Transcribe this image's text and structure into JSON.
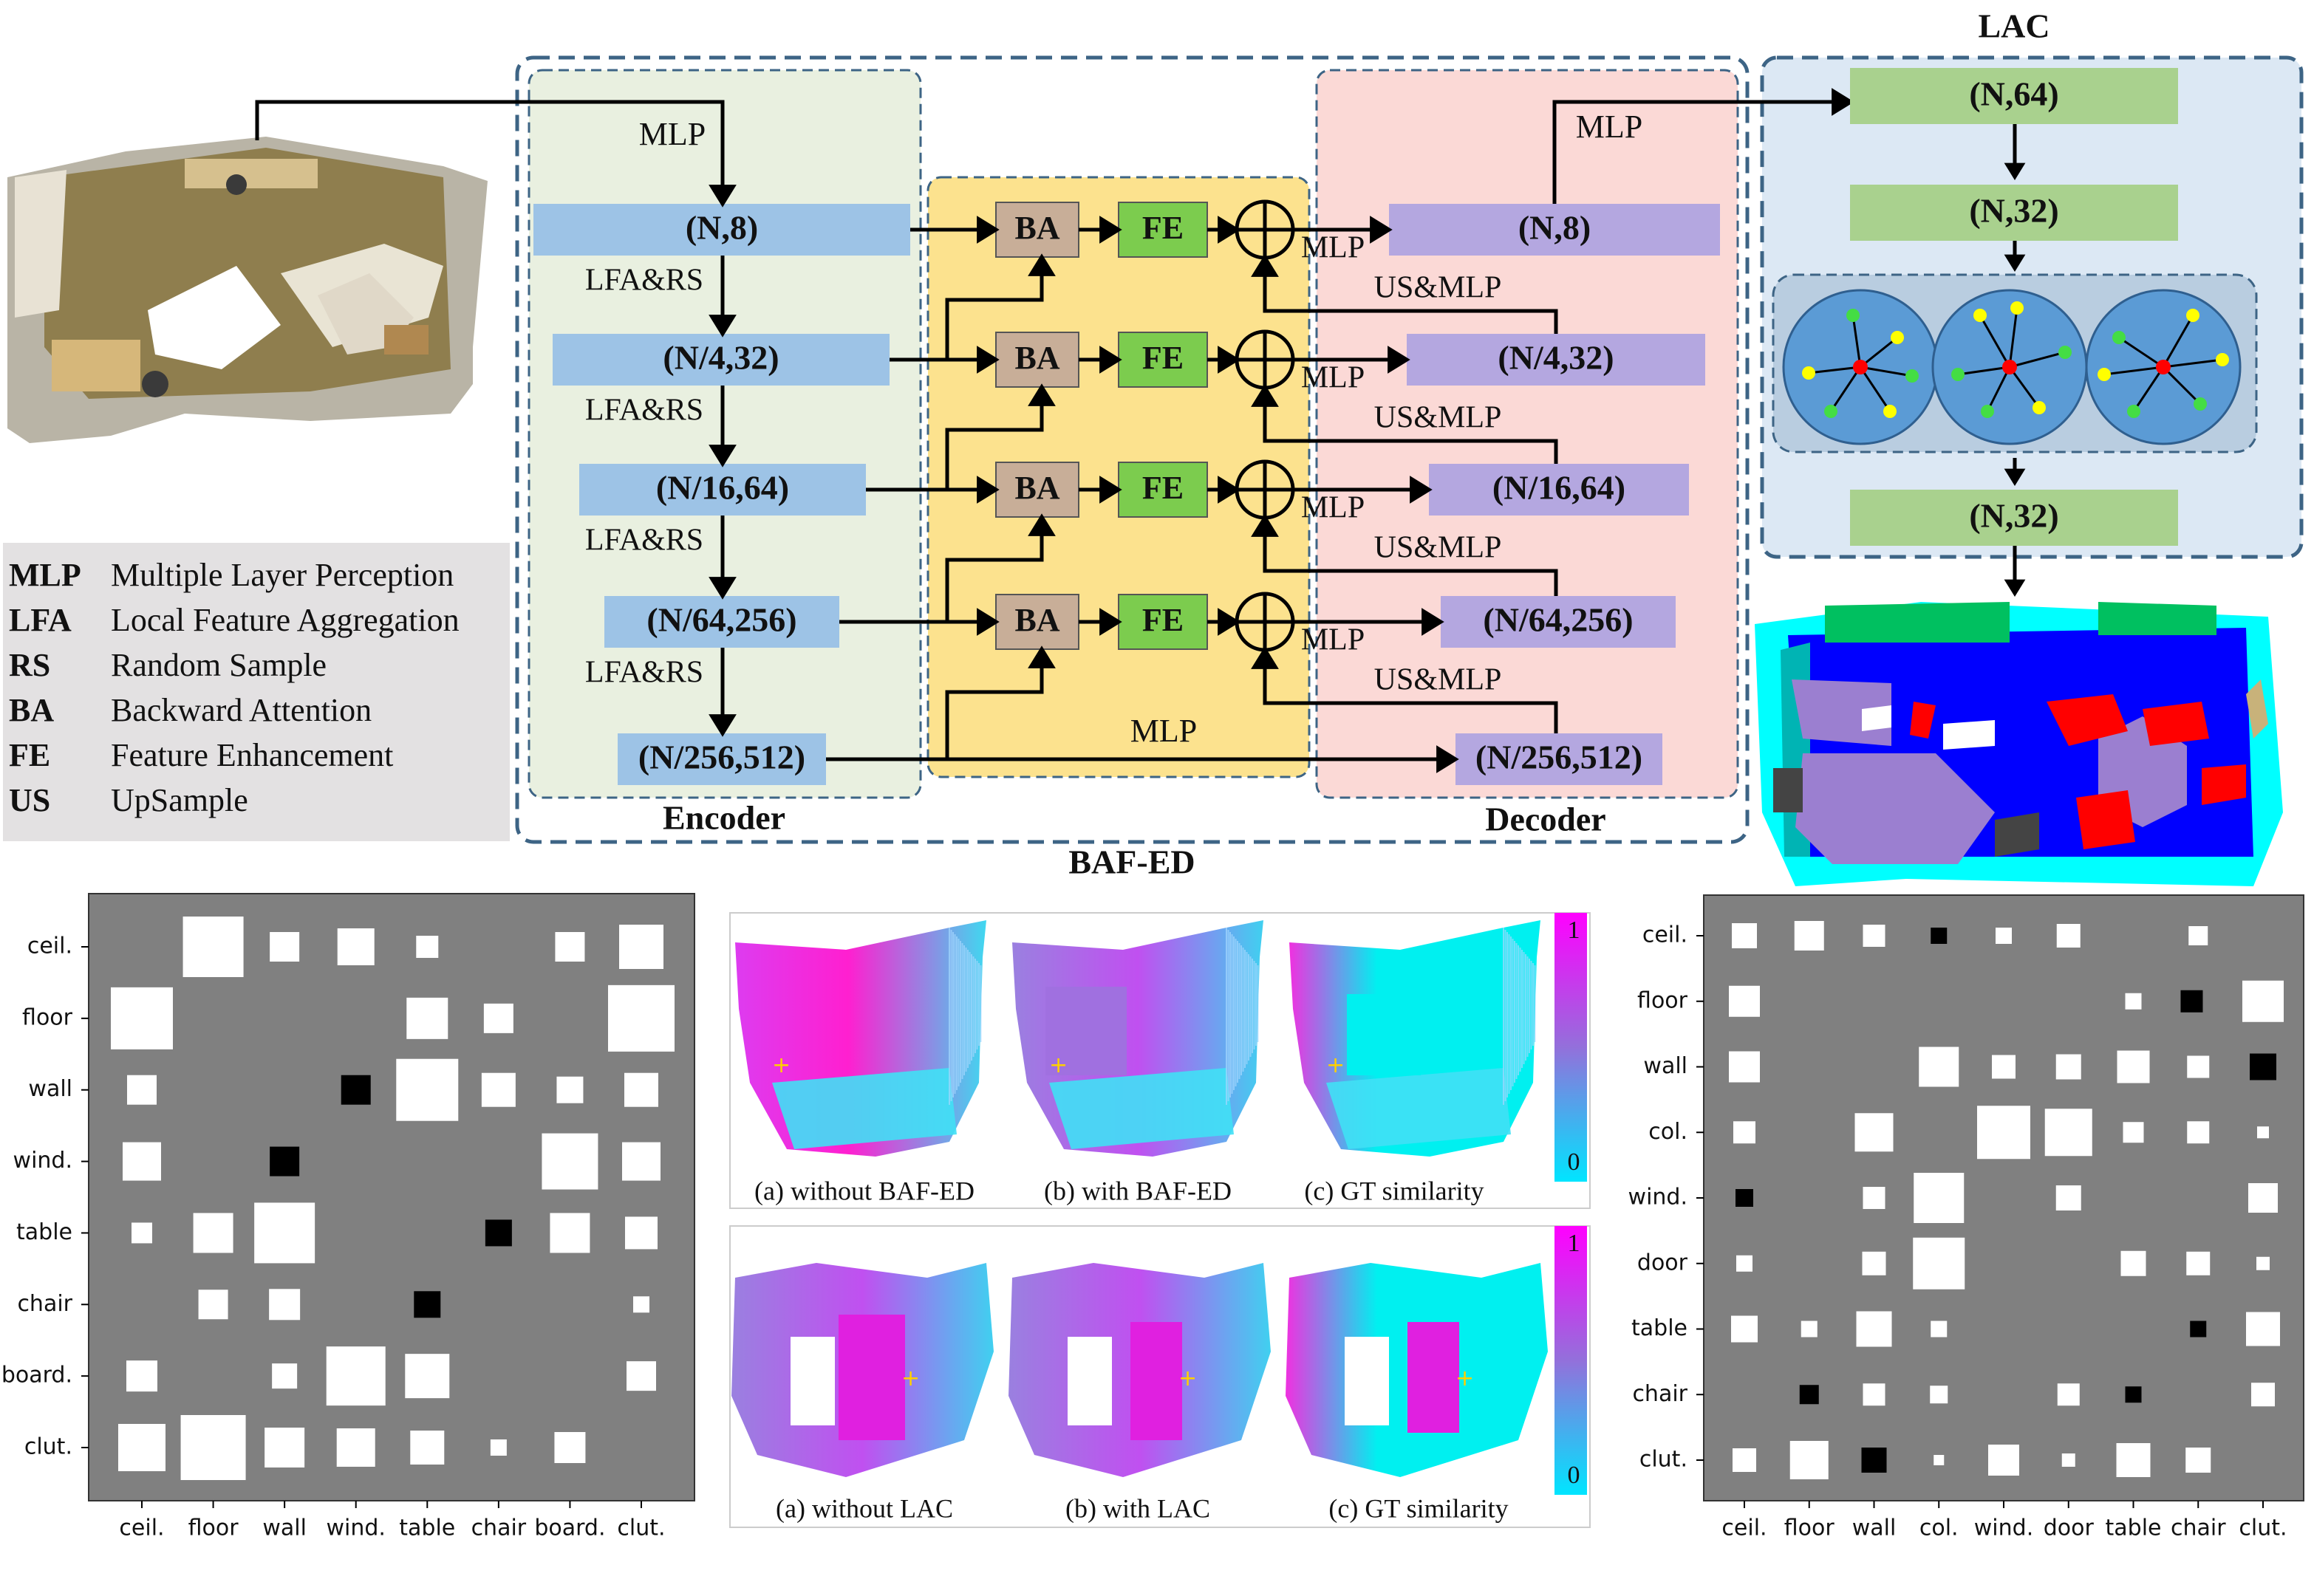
{
  "colors": {
    "dash_border": "#3d6485",
    "encoder_bg": "#e9f0e0",
    "middle_bg": "#fce28e",
    "decoder_bg": "#fbd9d6",
    "lac_bg": "#dce8f4",
    "encoder_box": "#9dc3e6",
    "decoder_box": "#b4a7e0",
    "ba_box": "#c8ae98",
    "fe_box": "#7ccc4e",
    "lac_box": "#a9d18e",
    "matrix_bg": "#808080",
    "heat_high": "#ff00ff",
    "heat_low": "#00ffff"
  },
  "legend": [
    {
      "abbr": "MLP",
      "full": "Multiple Layer Perception"
    },
    {
      "abbr": "LFA",
      "full": "Local Feature Aggregation"
    },
    {
      "abbr": "RS",
      "full": "Random Sample"
    },
    {
      "abbr": "BA",
      "full": "Backward Attention"
    },
    {
      "abbr": "FE",
      "full": "Feature Enhancement"
    },
    {
      "abbr": "US",
      "full": "UpSample"
    }
  ],
  "encoder": {
    "title": "Encoder",
    "input_label": "MLP",
    "stages": [
      "(N,8)",
      "(N/4,32)",
      "(N/16,64)",
      "(N/64,256)",
      "(N/256,512)"
    ],
    "transition_label": "LFA&RS"
  },
  "middle": {
    "ba_label": "BA",
    "fe_label": "FE",
    "merge_label": "MLP",
    "bottom_label": "MLP"
  },
  "decoder": {
    "title": "Decoder",
    "stages": [
      "(N,8)",
      "(N/4,32)",
      "(N/16,64)",
      "(N/64,256)",
      "(N/256,512)"
    ],
    "up_label": "US&MLP",
    "out_label": "MLP"
  },
  "framework_title": "BAF-ED",
  "lac": {
    "title": "LAC",
    "stages": [
      "(N,64)",
      "(N,32)",
      "(N,32)"
    ]
  },
  "matrix_left": {
    "labels": [
      "ceil.",
      "floor",
      "wall",
      "wind.",
      "table",
      "chair",
      "board.",
      "clut."
    ]
  },
  "matrix_right": {
    "labels": [
      "ceil.",
      "floor",
      "wall",
      "col.",
      "wind.",
      "door",
      "table",
      "chair",
      "clut."
    ]
  },
  "heatmaps_top": {
    "captions": [
      "(a) without BAF-ED",
      "(b) with BAF-ED",
      "(c) GT similarity"
    ],
    "scale_max": "1",
    "scale_min": "0"
  },
  "heatmaps_bottom": {
    "captions": [
      "(a) without LAC",
      "(b) with LAC",
      "(c) GT similarity"
    ],
    "scale_max": "1",
    "scale_min": "0"
  }
}
